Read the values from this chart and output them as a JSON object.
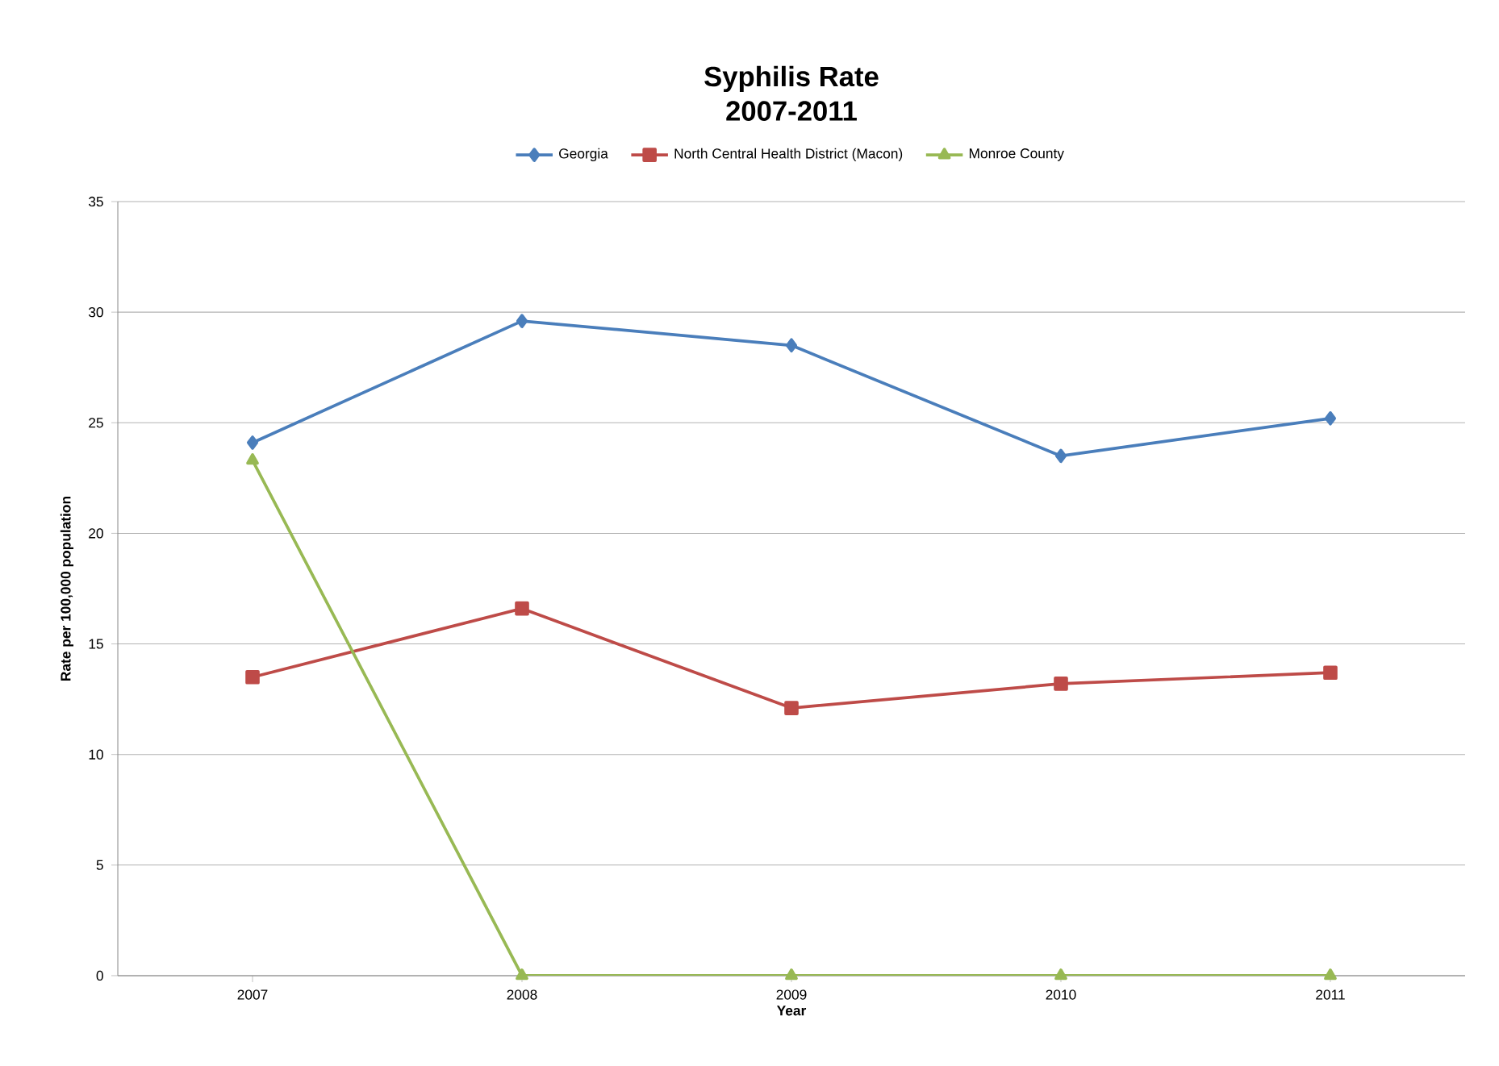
{
  "chart_data": {
    "type": "line",
    "title": "Syphilis Rate",
    "subtitle": "2007-2011",
    "xlabel": "Year",
    "ylabel": "Rate per 100,000 population",
    "categories": [
      "2007",
      "2008",
      "2009",
      "2010",
      "2011"
    ],
    "series": [
      {
        "name": "Georgia",
        "color": "#4a7ebb",
        "marker": "diamond",
        "values": [
          24.1,
          29.6,
          28.5,
          23.5,
          25.2
        ]
      },
      {
        "name": "North Central Health District (Macon)",
        "color": "#be4b48",
        "marker": "square",
        "values": [
          13.5,
          16.6,
          12.1,
          13.2,
          13.7
        ]
      },
      {
        "name": "Monroe County",
        "color": "#98b954",
        "marker": "triangle",
        "values": [
          23.3,
          0,
          0,
          0,
          0
        ]
      }
    ],
    "ylim": [
      0,
      35
    ],
    "yticks": [
      0,
      5,
      10,
      15,
      20,
      25,
      30,
      35
    ],
    "grid": "y",
    "legend": "top",
    "line_style": "solid"
  }
}
